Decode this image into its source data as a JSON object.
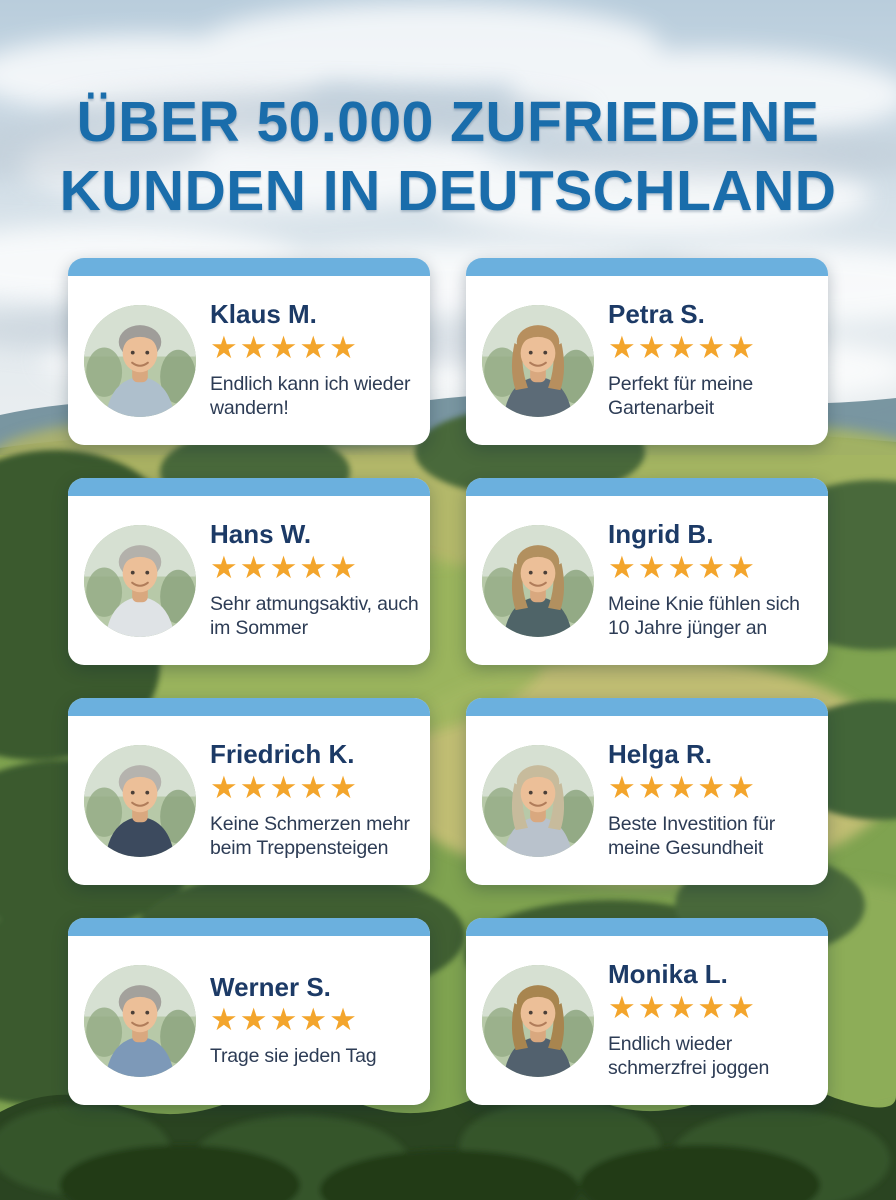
{
  "header": {
    "title_line1": "ÜBER 50.000 ZUFRIEDENE",
    "title_line2": "KUNDEN IN DEUTSCHLAND"
  },
  "colors": {
    "headline_blue": "#1a6dab",
    "card_bar_blue": "#6bb0de",
    "name_navy": "#1c3a66",
    "star_gold": "#f3a52c",
    "review_text": "#2d3c55"
  },
  "cards": [
    {
      "name": "Klaus M.",
      "rating": 5,
      "quote": "Endlich kann ich wieder wandern!",
      "avatar": {
        "type": "older-man-gray-hair",
        "hair": "#9f9d99",
        "shirt": "#aebfcc"
      }
    },
    {
      "name": "Petra S.",
      "rating": 5,
      "quote": "Perfekt für meine Gartenarbeit",
      "avatar": {
        "type": "older-woman-blonde-hair",
        "hair": "#b78f5e",
        "shirt": "#5c6b77"
      }
    },
    {
      "name": "Hans W.",
      "rating": 5,
      "quote": "Sehr atmungsaktiv, auch im Sommer",
      "avatar": {
        "type": "older-man-gray-hair",
        "hair": "#b3b1ab",
        "shirt": "#dfe3e6"
      }
    },
    {
      "name": "Ingrid B.",
      "rating": 5,
      "quote": "Meine Knie fühlen sich 10 Jahre jünger an",
      "avatar": {
        "type": "older-woman-blonde-hair",
        "hair": "#b2905f",
        "shirt": "#4f6468"
      }
    },
    {
      "name": "Friedrich K.",
      "rating": 5,
      "quote": "Keine Schmerzen mehr beim Treppensteigen",
      "avatar": {
        "type": "older-man-gray-hair",
        "hair": "#b5b3ae",
        "shirt": "#3c4a5e"
      }
    },
    {
      "name": "Helga R.",
      "rating": 5,
      "quote": "Beste Investition für meine Gesundheit",
      "avatar": {
        "type": "older-woman-blonde-gray-hair",
        "hair": "#c7bb9c",
        "shirt": "#b9c2cc"
      }
    },
    {
      "name": "Werner S.",
      "rating": 5,
      "quote": "Trage sie jeden Tag",
      "avatar": {
        "type": "older-man-gray-hair",
        "hair": "#a3a19c",
        "shirt": "#7d99b8"
      }
    },
    {
      "name": "Monika L.",
      "rating": 5,
      "quote": "Endlich wieder schmerzfrei joggen",
      "avatar": {
        "type": "older-woman-blonde-hair",
        "hair": "#a8854f",
        "shirt": "#52616e"
      }
    }
  ]
}
